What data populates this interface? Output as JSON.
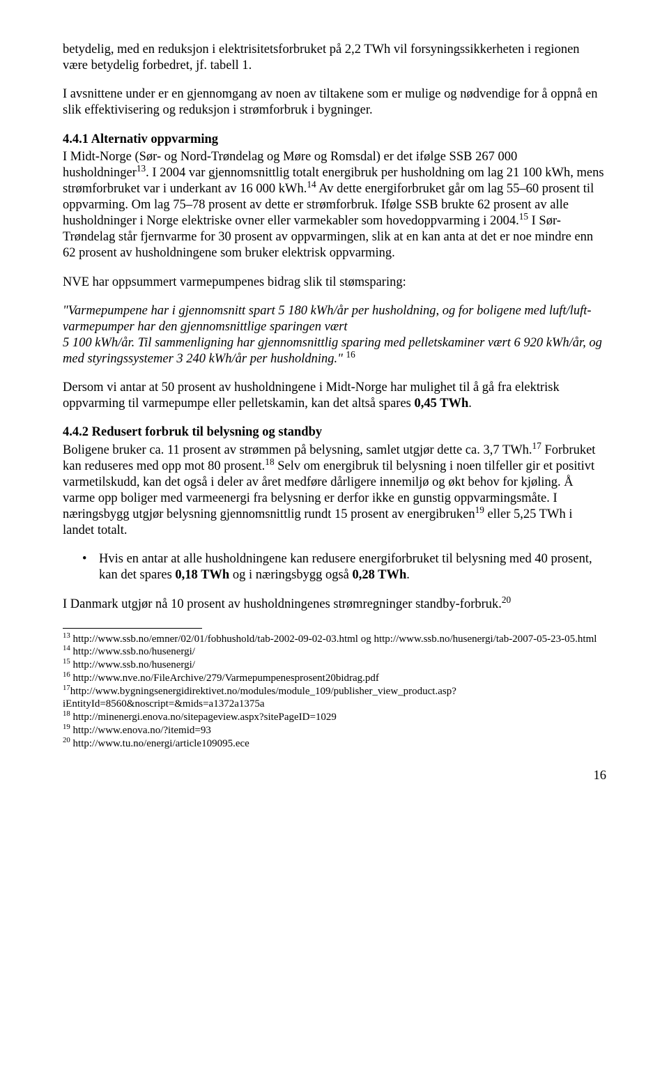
{
  "p_intro": "betydelig, med en reduksjon i elektrisitetsforbruket på 2,2 TWh vil forsyningssikkerheten i regionen være betydelig forbedret, jf. tabell 1.",
  "p_avsnitt": " I avsnittene under er en gjennomgang av noen av tiltakene som er mulige og nødvendige for å oppnå en slik effektivisering og reduksjon i strømforbruk i bygninger.",
  "h_441": "4.4.1 Alternativ oppvarming",
  "p_441_a": "I Midt-Norge (Sør- og Nord-Trøndelag og Møre og Romsdal) er det ifølge SSB 267 000 husholdninger",
  "sup13": "13",
  "p_441_b": ". I 2004 var gjennomsnittlig totalt energibruk per husholdning om lag 21 100 kWh, mens strømforbruket var i underkant av 16 000 kWh.",
  "sup14": "14",
  "p_441_c": " Av dette energiforbruket går om lag 55–60 prosent til oppvarming. Om lag 75–78 prosent av dette er strømforbruk. Ifølge SSB brukte 62 prosent av alle husholdninger i Norge elektriske ovner eller varmekabler som hovedoppvarming i 2004.",
  "sup15": "15",
  "p_441_d": " I Sør-Trøndelag står fjernvarme for 30 prosent av oppvarmingen, slik at en kan anta at det er noe mindre enn 62 prosent av husholdningene som bruker elektrisk oppvarming.",
  "p_nve": "NVE har oppsummert varmepumpenes bidrag slik til stømsparing:",
  "quote_a": "\"Varmepumpene har i gjennomsnitt spart 5 180 kWh/år per husholdning, og for boligene med luft/luft-varmepumper har den gjennomsnittlige sparingen vært",
  "quote_b": "5 100 kWh/år. Til sammenligning har gjennomsnittlig sparing med pelletskaminer vært 6 920 kWh/år, og med styringssystemer 3 240 kWh/år per husholdning.\" ",
  "sup16": "16",
  "p_dersom_a": "Dersom vi antar at 50 prosent av husholdningene i Midt-Norge har mulighet til å gå fra elektrisk oppvarming til varmepumpe eller pelletskamin, kan det altså spares ",
  "p_dersom_b": "0,45 TWh",
  "p_dersom_c": ".",
  "h_442": "4.4.2 Redusert forbruk til belysning og standby",
  "p_442_a": "Boligene bruker ca. 11 prosent av strømmen på belysning, samlet utgjør dette ca. 3,7 TWh.",
  "sup17": "17",
  "p_442_b": " Forbruket kan reduseres med opp mot 80 prosent.",
  "sup18": "18",
  "p_442_c": " Selv om energibruk til belysning i noen tilfeller gir et positivt varmetilskudd, kan det også i deler av året medføre dårligere innemiljø og økt behov for kjøling. Å varme opp boliger med varmeenergi fra belysning er derfor ikke en gunstig oppvarmingsmåte. I næringsbygg utgjør belysning gjennomsnittlig rundt 15 prosent av energibruken",
  "sup19": "19",
  "p_442_d": " eller 5,25 TWh i landet totalt.",
  "bullet_a": "Hvis en antar at alle husholdningene kan redusere energiforbruket til belysning med 40 prosent, kan det spares ",
  "bullet_b": "0,18 TWh",
  "bullet_c": " og i næringsbygg også ",
  "bullet_d": "0,28 TWh",
  "bullet_e": ".",
  "p_dk_a": "I Danmark utgjør nå 10 prosent av husholdningenes strømregninger standby-forbruk.",
  "sup20": "20",
  "fn13_sup": "13",
  "fn13": " http://www.ssb.no/emner/02/01/fobhushold/tab-2002-09-02-03.html og http://www.ssb.no/husenergi/tab-2007-05-23-05.html",
  "fn14_sup": "14",
  "fn14": " http://www.ssb.no/husenergi/",
  "fn15_sup": "15",
  "fn15": " http://www.ssb.no/husenergi/",
  "fn16_sup": "16",
  "fn16": " http://www.nve.no/FileArchive/279/Varmepumpenesprosent20bidrag.pdf",
  "fn17_sup": "17",
  "fn17": "http://www.bygningsenergidirektivet.no/modules/module_109/publisher_view_product.asp?iEntityId=8560&noscript=&mids=a1372a1375a",
  "fn18_sup": "18",
  "fn18": " http://minenergi.enova.no/sitepageview.aspx?sitePageID=1029",
  "fn19_sup": "19",
  "fn19": " http://www.enova.no/?itemid=93",
  "fn20_sup": "20",
  "fn20": " http://www.tu.no/energi/article109095.ece",
  "pagenum": "16"
}
